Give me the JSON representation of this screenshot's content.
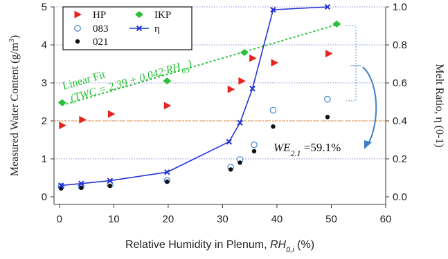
{
  "chart_data": {
    "type": "scatter",
    "xlabel": "Relative Humidity in Plenum, ",
    "xlabel_var": "RH",
    "xlabel_sub": "0,i",
    "xlabel_unit": " (%)",
    "ylabel_left": "Measured Water Content (g/m",
    "ylabel_left_sup": "3",
    "ylabel_left_end": ")",
    "ylabel_right": "Melt Ratio, η (0-1)",
    "xlim": [
      -1,
      60
    ],
    "ylim_left": [
      -0.2,
      5
    ],
    "ylim_right": [
      -0.04,
      1.0
    ],
    "xticks": [
      0,
      10,
      20,
      30,
      40,
      50,
      60
    ],
    "yticks_left": [
      0,
      1,
      2,
      3,
      4,
      5
    ],
    "yticks_right": [
      "0.0",
      "0.2",
      "0.4",
      "0.6",
      "0.8",
      "1.0"
    ],
    "yticks_right_values": [
      0,
      0.2,
      0.4,
      0.6,
      0.8,
      1.0
    ],
    "gridlines_right_axis": true,
    "series": [
      {
        "name": "HP",
        "marker": "triangle-right",
        "color": "#e8231f",
        "axis": "left",
        "x": [
          0.5,
          4.2,
          9.5,
          19.8,
          31.5,
          33.5,
          35.5,
          39.5,
          49.5
        ],
        "y": [
          1.88,
          2.03,
          2.18,
          2.4,
          2.83,
          3.05,
          3.65,
          3.53,
          3.77
        ]
      },
      {
        "name": "083",
        "marker": "circle-open",
        "color": "#4a8bd6",
        "axis": "left",
        "x": [
          0.3,
          4.0,
          9.3,
          19.8,
          31.5,
          33.2,
          35.8,
          39.3,
          49.3
        ],
        "y": [
          0.27,
          0.27,
          0.32,
          0.43,
          0.78,
          0.98,
          1.37,
          2.28,
          2.57
        ]
      },
      {
        "name": "021",
        "marker": "circle-filled",
        "color": "#111111",
        "axis": "left",
        "x": [
          0.3,
          4.0,
          9.3,
          19.8,
          31.5,
          33.2,
          35.8,
          39.3,
          49.3
        ],
        "y": [
          0.22,
          0.24,
          0.29,
          0.4,
          0.72,
          0.9,
          1.2,
          1.85,
          2.1
        ]
      },
      {
        "name": "IKP",
        "marker": "diamond",
        "color": "#2bbf3a",
        "axis": "left",
        "x": [
          0.5,
          19.8,
          34.0,
          51.0
        ],
        "y": [
          2.48,
          3.05,
          3.8,
          4.55
        ]
      },
      {
        "name": "η",
        "marker": "x-line",
        "color": "#2432d6",
        "axis": "right",
        "x": [
          0.3,
          4.0,
          9.3,
          19.8,
          31.2,
          33.2,
          35.5,
          39.3,
          49.3
        ],
        "y": [
          0.06,
          0.07,
          0.085,
          0.13,
          0.29,
          0.39,
          0.57,
          0.985,
          1.0
        ]
      }
    ],
    "fit": {
      "label_line1": "Linear Fit",
      "label_line2": "(TWC = 2.39 + 0.042·RH",
      "label_line2_sub": "0,i",
      "label_line2_end": ")",
      "color": "#2bbf3a",
      "intercept": 2.39,
      "slope": 0.042,
      "x_range": [
        0.5,
        51.0
      ]
    },
    "reference_line": {
      "axis": "left",
      "y": 2.0,
      "color": "#f0a050"
    },
    "annotation": {
      "prefix": "WE",
      "sub": "2.1",
      "suffix": " =59.1%",
      "arrow_color": "#3d7fc8",
      "bracket_color": "#7aa9d6"
    },
    "legend": {
      "placement": "top-left",
      "columns": 2
    }
  }
}
